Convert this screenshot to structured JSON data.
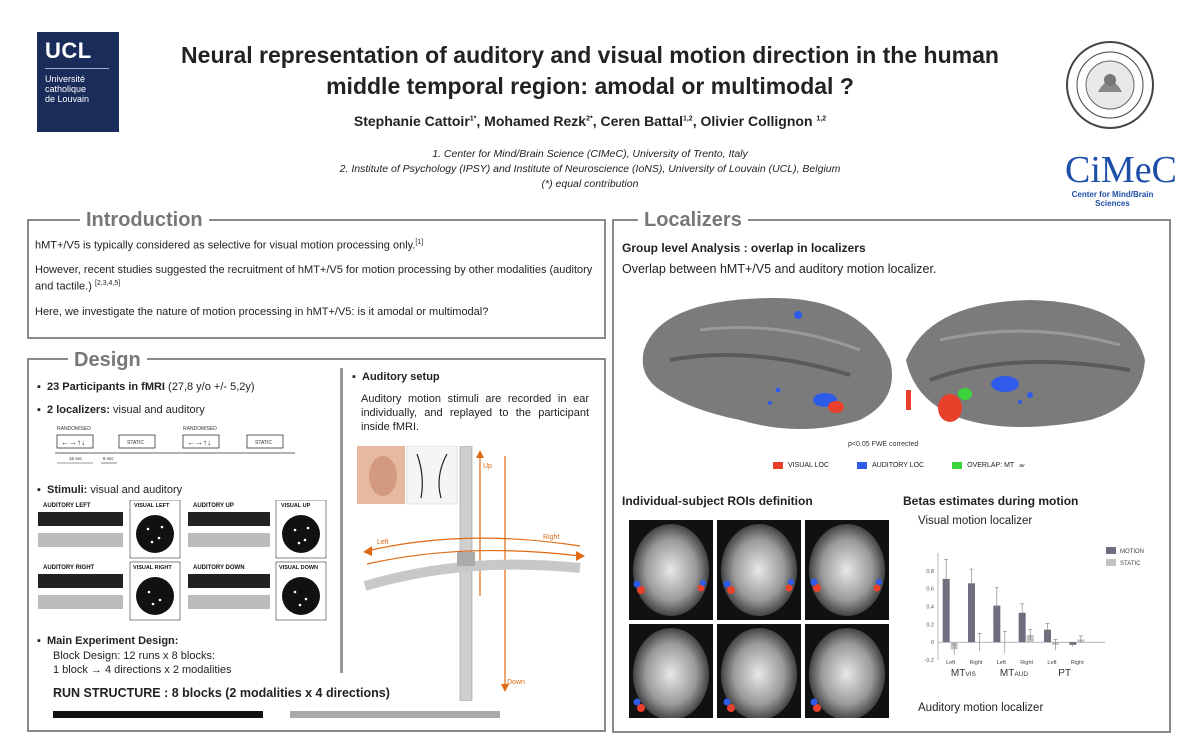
{
  "header": {
    "ucl_logo": {
      "big": "UCL",
      "lines": [
        "Université",
        "catholique",
        "de Louvain"
      ]
    },
    "title_line1": "Neural representation of auditory and visual motion direction in the human",
    "title_line2": "middle temporal region: amodal or multimodal ?",
    "authors": [
      {
        "name": "Stephanie Cattoir",
        "sup": "1*",
        "sep": ", "
      },
      {
        "name": "Mohamed Rezk",
        "sup": "2*",
        "sep": ", "
      },
      {
        "name": "Ceren Battal",
        "sup": "1,2",
        "sep": ", "
      },
      {
        "name": "Olivier Collignon ",
        "sup": "1,2",
        "sep": ""
      }
    ],
    "affiliation1": "1. Center for Mind/Brain Science (CIMeC), University of Trento, Italy",
    "affiliation2": "2. Institute of Psychology (IPSY) and Institute of Neuroscience (IoNS), University of Louvain (UCL), Belgium",
    "affiliation3": "(*) equal contribution",
    "cimec_logo": {
      "big": "CiMeC",
      "small": "Center for Mind/Brain Sciences"
    }
  },
  "introduction": {
    "title": "Introduction",
    "p1": "hMT+/V5 is typically considered as selective for visual motion processing only.",
    "p1_ref": "[1]",
    "p2": "However, recent studies suggested the recruitment of hMT+/V5 for motion processing by other modalities (auditory and tactile.)",
    "p2_ref": "[2,3,4,5]",
    "p3": "Here, we investigate the nature of motion processing in hMT+/V5: is it amodal or multimodal?"
  },
  "design": {
    "title": "Design",
    "b1_bold": "23 Participants in fMRI",
    "b1_rest": " (27,8 y/o +/- 5,2y)",
    "b2_bold": "2 localizers:",
    "b2_rest": " visual and auditory",
    "timeline": {
      "randomised": "RANDOMISED",
      "static": "STATIC",
      "arrows": "←→↑↓",
      "t1": "16 sec",
      "t2": "8 sec"
    },
    "b3_bold": "Stimuli:",
    "b3_rest": " visual and auditory",
    "stimuli": [
      "AUDITORY LEFT",
      "VISUAL LEFT",
      "AUDITORY UP",
      "VISUAL UP",
      "AUDITORY RIGHT",
      "VISUAL RIGHT",
      "AUDITORY DOWN",
      "VISUAL DOWN"
    ],
    "b4_bold": "Main Experiment Design:",
    "b4_l1": "Block Design: 12 runs x 8 blocks:",
    "b4_l2": "1 block → 4 directions x 2 modalities",
    "run_structure": "RUN STRUCTURE : 8 blocks (2 modalities  x  4 directions)",
    "auditory_setup_title": "Auditory setup",
    "auditory_setup_text": "Auditory motion stimuli are recorded in ear individually, and replayed to the participant inside fMRI.",
    "dir_up": "Up",
    "dir_down": "Down",
    "dir_left": "Left",
    "dir_right": "Right"
  },
  "localizers": {
    "title": "Localizers",
    "group_title": "Group level Analysis : overlap in localizers",
    "group_text": "Overlap between hMT+/V5 and auditory motion localizer.",
    "threshold": "p<0.05 FWE corrected",
    "legend": [
      {
        "label": "VISUAL LOC",
        "color": "#e8402a"
      },
      {
        "label": "AUDITORY LOC",
        "color": "#2f5bea"
      },
      {
        "label": "OVERLAP: MT",
        "sub": "av",
        "color": "#3bd43b"
      }
    ],
    "roi_title": "Individual-subject ROIs definition",
    "betas_title": "Betas estimates during motion",
    "visual_loc_title": "Visual motion localizer",
    "auditory_loc_title": "Auditory motion localizer"
  },
  "chart_data": {
    "type": "bar",
    "title": "Visual motion localizer",
    "ylim": [
      -0.2,
      1.0
    ],
    "yticks": [
      "0.8",
      "0.6",
      "0.4",
      "0.2",
      "0",
      "-0.2"
    ],
    "categories": [
      "Left",
      "Right",
      "Left",
      "Right",
      "Left",
      "Right"
    ],
    "groups": [
      {
        "label": "MT",
        "sub": "VIS"
      },
      {
        "label": "MT",
        "sub": "AUD"
      },
      {
        "label": "PT",
        "sub": ""
      }
    ],
    "series": [
      {
        "name": "MOTION",
        "color": "#6e6e80",
        "values": [
          0.71,
          0.66,
          0.41,
          0.33,
          0.14,
          -0.03
        ]
      },
      {
        "name": "STATIC",
        "color": "#c2c2c2",
        "values": [
          -0.08,
          0.0,
          0.0,
          0.08,
          -0.03,
          0.03
        ]
      }
    ],
    "errors": {
      "MOTION": [
        0.22,
        0.16,
        0.2,
        0.1,
        0.07,
        0.02
      ],
      "STATIC": [
        0.06,
        0.1,
        0.12,
        0.06,
        0.06,
        0.04
      ]
    }
  }
}
